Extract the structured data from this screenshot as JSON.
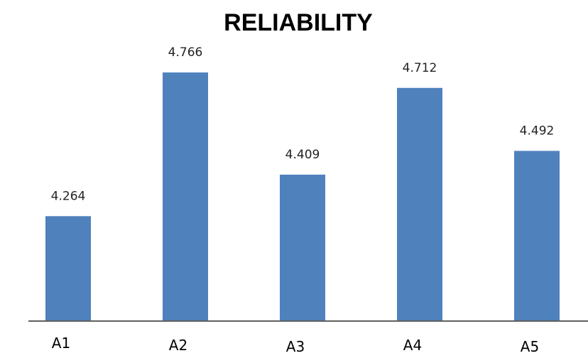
{
  "chart_data": {
    "type": "bar",
    "title": "RELIABILITY",
    "categories": [
      "A1",
      "A2",
      "A3",
      "A4",
      "A5"
    ],
    "values": [
      4.264,
      4.766,
      4.409,
      4.712,
      4.492
    ],
    "data_labels": [
      "4.264",
      "4.766",
      "4.409",
      "4.712",
      "4.492"
    ],
    "bar_color": "#4F81BD",
    "axis_color": "#000000",
    "xlabel": "",
    "ylabel": "",
    "grid": false,
    "legend": "none",
    "y_axis_visible": false,
    "ylim": [
      3.9,
      4.85
    ]
  }
}
